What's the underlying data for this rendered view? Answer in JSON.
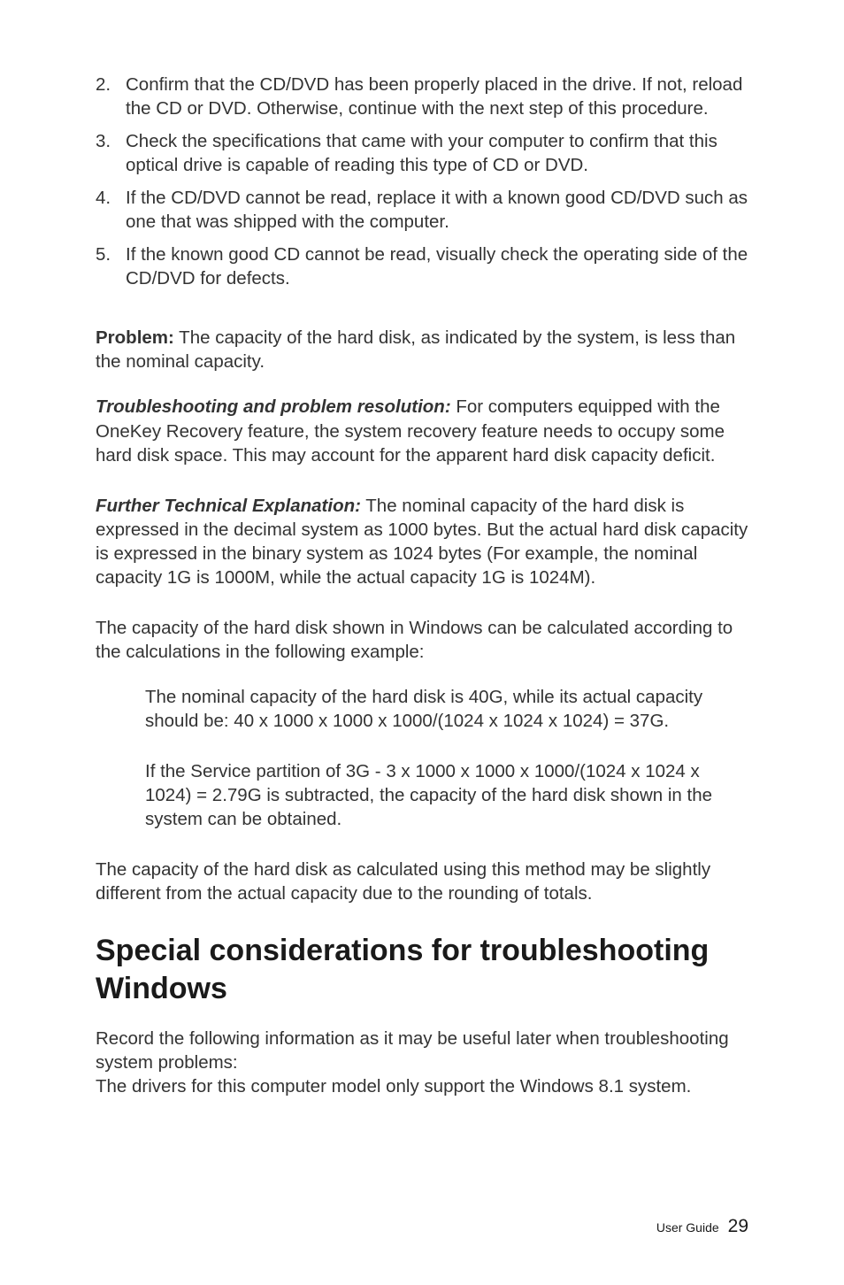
{
  "list": {
    "items": [
      {
        "num": "2.",
        "text": "Confirm that the CD/DVD has been properly placed in the drive. If not, reload the CD or DVD. Otherwise, continue with the next step of this procedure."
      },
      {
        "num": "3.",
        "text": "Check the specifications that came with your computer to confirm that this optical drive is capable of reading this type of CD or DVD."
      },
      {
        "num": "4.",
        "text": "If the CD/DVD cannot be read, replace it with a known good CD/DVD such as one that was shipped with the computer."
      },
      {
        "num": "5.",
        "text": "If the known good CD cannot be read, visually check the operating side of the CD/DVD for defects."
      }
    ]
  },
  "problem": {
    "label": "Problem:",
    "text": " The capacity of the hard disk, as indicated by the system, is less than the nominal capacity."
  },
  "resolution": {
    "label": "Troubleshooting and problem resolution:",
    "text": " For computers equipped with the OneKey Recovery feature, the system recovery feature needs to occupy some hard disk space. This may account for the apparent hard disk capacity deficit."
  },
  "explanation": {
    "label": "Further Technical Explanation:",
    "text": " The nominal capacity of the hard disk is expressed in the decimal system as 1000 bytes. But the actual hard disk capacity is expressed in the binary system as 1024 bytes (For example, the nominal capacity 1G is 1000M, while the actual capacity 1G is 1024M)."
  },
  "calc_intro": "The capacity of the hard disk shown in Windows can be calculated according to the calculations in the following example:",
  "calc_example_1": "The nominal capacity of the hard disk is 40G, while its actual capacity should be: 40 x 1000 x 1000 x 1000/(1024 x 1024 x 1024) = 37G.",
  "calc_example_2": "If the Service partition of 3G - 3 x 1000 x 1000 x 1000/(1024 x 1024 x 1024) = 2.79G is subtracted, the capacity of the hard disk shown in the system can be obtained.",
  "calc_outro": "The capacity of the hard disk as calculated using this method may be slightly different from the actual capacity due to the rounding of totals.",
  "section_heading": "Special considerations for troubleshooting Windows",
  "section_body_1": "Record the following information as it may be useful later when troubleshooting system problems:",
  "section_body_2": "The drivers for this computer model only support the Windows 8.1 system.",
  "footer": {
    "label": "User Guide",
    "page": "29"
  },
  "colors": {
    "text": "#333333",
    "heading": "#1a1a1a",
    "bg": "#ffffff"
  }
}
